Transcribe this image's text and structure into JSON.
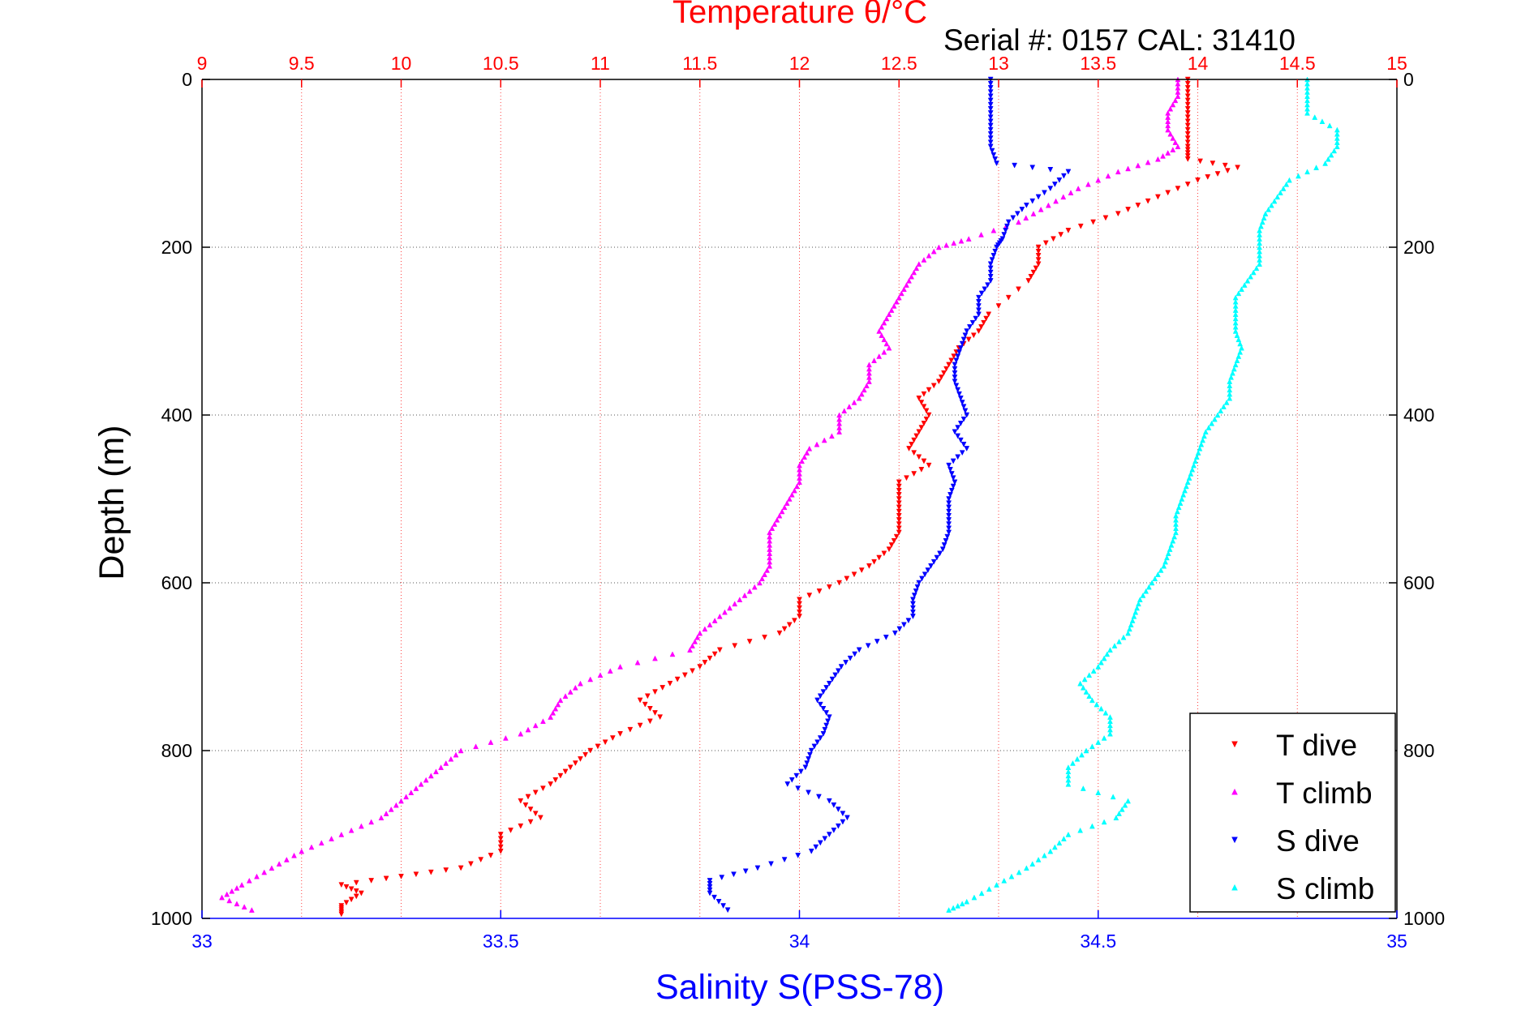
{
  "chart_data": {
    "type": "scatter",
    "title": "Temperature θ/°C",
    "subtitle": "Serial #: 0157  CAL: 31410",
    "xlabel": "Salinity S(PSS-78)",
    "ylabel": "Depth (m)",
    "x_bottom": {
      "label": "Salinity S(PSS-78)",
      "range": [
        33,
        35
      ],
      "ticks": [
        "33",
        "33.5",
        "34",
        "34.5",
        "35"
      ],
      "color": "#0000ff"
    },
    "x_top": {
      "label": "Temperature θ/°C",
      "range": [
        9,
        15
      ],
      "ticks": [
        "9",
        "9.5",
        "10",
        "10.5",
        "11",
        "11.5",
        "12",
        "12.5",
        "13",
        "13.5",
        "14",
        "14.5",
        "15"
      ],
      "color": "#ff0000"
    },
    "y": {
      "label": "Depth (m)",
      "range": [
        0,
        1000
      ],
      "reversed": true,
      "ticks": [
        "0",
        "200",
        "400",
        "600",
        "800",
        "1000"
      ]
    },
    "grid": true,
    "legend_position": "bottom-right",
    "series": [
      {
        "name": "T dive",
        "axis": "temperature",
        "color": "#ff0000",
        "marker": "triangle-down",
        "points": [
          [
            13.95,
            0
          ],
          [
            13.95,
            20
          ],
          [
            13.95,
            40
          ],
          [
            13.95,
            60
          ],
          [
            13.95,
            80
          ],
          [
            13.95,
            95
          ],
          [
            14.2,
            105
          ],
          [
            14.0,
            120
          ],
          [
            13.8,
            140
          ],
          [
            13.6,
            160
          ],
          [
            13.35,
            180
          ],
          [
            13.2,
            200
          ],
          [
            13.2,
            220
          ],
          [
            13.15,
            240
          ],
          [
            12.95,
            280
          ],
          [
            12.9,
            300
          ],
          [
            12.8,
            320
          ],
          [
            12.75,
            340
          ],
          [
            12.7,
            360
          ],
          [
            12.6,
            380
          ],
          [
            12.65,
            400
          ],
          [
            12.6,
            420
          ],
          [
            12.55,
            440
          ],
          [
            12.65,
            460
          ],
          [
            12.5,
            480
          ],
          [
            12.5,
            500
          ],
          [
            12.5,
            520
          ],
          [
            12.5,
            540
          ],
          [
            12.45,
            560
          ],
          [
            12.35,
            580
          ],
          [
            12.2,
            600
          ],
          [
            12.0,
            620
          ],
          [
            12.0,
            640
          ],
          [
            11.9,
            660
          ],
          [
            11.6,
            680
          ],
          [
            11.5,
            700
          ],
          [
            11.35,
            720
          ],
          [
            11.2,
            740
          ],
          [
            11.3,
            760
          ],
          [
            11.1,
            780
          ],
          [
            10.95,
            800
          ],
          [
            10.85,
            820
          ],
          [
            10.75,
            840
          ],
          [
            10.6,
            860
          ],
          [
            10.7,
            880
          ],
          [
            10.5,
            900
          ],
          [
            10.5,
            920
          ],
          [
            10.3,
            940
          ],
          [
            10.0,
            950
          ],
          [
            9.7,
            960
          ],
          [
            9.8,
            970
          ],
          [
            9.7,
            985
          ],
          [
            9.7,
            995
          ]
        ]
      },
      {
        "name": "T climb",
        "axis": "temperature",
        "color": "#ff00ff",
        "marker": "triangle-up",
        "points": [
          [
            13.9,
            0
          ],
          [
            13.9,
            20
          ],
          [
            13.85,
            40
          ],
          [
            13.85,
            60
          ],
          [
            13.9,
            80
          ],
          [
            13.8,
            95
          ],
          [
            13.6,
            110
          ],
          [
            13.4,
            130
          ],
          [
            13.25,
            150
          ],
          [
            13.1,
            170
          ],
          [
            12.85,
            190
          ],
          [
            12.7,
            200
          ],
          [
            12.6,
            220
          ],
          [
            12.55,
            240
          ],
          [
            12.5,
            260
          ],
          [
            12.45,
            280
          ],
          [
            12.4,
            300
          ],
          [
            12.45,
            320
          ],
          [
            12.35,
            340
          ],
          [
            12.35,
            360
          ],
          [
            12.3,
            380
          ],
          [
            12.2,
            400
          ],
          [
            12.2,
            420
          ],
          [
            12.05,
            440
          ],
          [
            12.0,
            460
          ],
          [
            12.0,
            480
          ],
          [
            11.95,
            500
          ],
          [
            11.9,
            520
          ],
          [
            11.85,
            540
          ],
          [
            11.85,
            560
          ],
          [
            11.85,
            580
          ],
          [
            11.8,
            600
          ],
          [
            11.7,
            620
          ],
          [
            11.6,
            640
          ],
          [
            11.5,
            660
          ],
          [
            11.45,
            680
          ],
          [
            11.1,
            700
          ],
          [
            10.9,
            720
          ],
          [
            10.8,
            740
          ],
          [
            10.75,
            760
          ],
          [
            10.6,
            780
          ],
          [
            10.3,
            800
          ],
          [
            10.2,
            820
          ],
          [
            10.1,
            840
          ],
          [
            10.0,
            860
          ],
          [
            9.9,
            880
          ],
          [
            9.7,
            900
          ],
          [
            9.5,
            920
          ],
          [
            9.35,
            940
          ],
          [
            9.2,
            960
          ],
          [
            9.1,
            975
          ],
          [
            9.25,
            990
          ]
        ]
      },
      {
        "name": "S dive",
        "axis": "salinity",
        "color": "#0000ff",
        "marker": "triangle-down",
        "points": [
          [
            34.32,
            0
          ],
          [
            34.32,
            20
          ],
          [
            34.32,
            40
          ],
          [
            34.32,
            60
          ],
          [
            34.32,
            80
          ],
          [
            34.33,
            100
          ],
          [
            34.45,
            110
          ],
          [
            34.42,
            130
          ],
          [
            34.38,
            150
          ],
          [
            34.35,
            170
          ],
          [
            34.34,
            190
          ],
          [
            34.33,
            200
          ],
          [
            34.32,
            220
          ],
          [
            34.32,
            240
          ],
          [
            34.3,
            260
          ],
          [
            34.3,
            280
          ],
          [
            34.28,
            300
          ],
          [
            34.27,
            320
          ],
          [
            34.26,
            340
          ],
          [
            34.26,
            360
          ],
          [
            34.27,
            380
          ],
          [
            34.28,
            400
          ],
          [
            34.26,
            420
          ],
          [
            34.28,
            440
          ],
          [
            34.25,
            460
          ],
          [
            34.26,
            480
          ],
          [
            34.25,
            500
          ],
          [
            34.25,
            520
          ],
          [
            34.25,
            540
          ],
          [
            34.24,
            560
          ],
          [
            34.22,
            580
          ],
          [
            34.2,
            600
          ],
          [
            34.19,
            620
          ],
          [
            34.19,
            640
          ],
          [
            34.16,
            660
          ],
          [
            34.1,
            680
          ],
          [
            34.07,
            700
          ],
          [
            34.05,
            720
          ],
          [
            34.03,
            740
          ],
          [
            34.05,
            760
          ],
          [
            34.04,
            780
          ],
          [
            34.02,
            800
          ],
          [
            34.01,
            820
          ],
          [
            33.98,
            840
          ],
          [
            34.05,
            860
          ],
          [
            34.08,
            880
          ],
          [
            34.05,
            900
          ],
          [
            34.02,
            920
          ],
          [
            33.93,
            940
          ],
          [
            33.85,
            955
          ],
          [
            33.85,
            970
          ],
          [
            33.88,
            990
          ]
        ]
      },
      {
        "name": "S climb",
        "axis": "salinity",
        "color": "#00ffff",
        "marker": "triangle-up",
        "points": [
          [
            34.85,
            0
          ],
          [
            34.85,
            20
          ],
          [
            34.85,
            40
          ],
          [
            34.9,
            60
          ],
          [
            34.9,
            80
          ],
          [
            34.88,
            100
          ],
          [
            34.82,
            120
          ],
          [
            34.8,
            140
          ],
          [
            34.78,
            160
          ],
          [
            34.77,
            180
          ],
          [
            34.77,
            200
          ],
          [
            34.77,
            220
          ],
          [
            34.75,
            240
          ],
          [
            34.73,
            260
          ],
          [
            34.73,
            280
          ],
          [
            34.73,
            300
          ],
          [
            34.74,
            320
          ],
          [
            34.73,
            340
          ],
          [
            34.72,
            360
          ],
          [
            34.72,
            380
          ],
          [
            34.7,
            400
          ],
          [
            34.68,
            420
          ],
          [
            34.67,
            440
          ],
          [
            34.66,
            460
          ],
          [
            34.65,
            480
          ],
          [
            34.64,
            500
          ],
          [
            34.63,
            520
          ],
          [
            34.63,
            540
          ],
          [
            34.62,
            560
          ],
          [
            34.61,
            580
          ],
          [
            34.59,
            600
          ],
          [
            34.57,
            620
          ],
          [
            34.56,
            640
          ],
          [
            34.55,
            660
          ],
          [
            34.52,
            680
          ],
          [
            34.5,
            700
          ],
          [
            34.47,
            720
          ],
          [
            34.49,
            740
          ],
          [
            34.52,
            760
          ],
          [
            34.52,
            780
          ],
          [
            34.48,
            800
          ],
          [
            34.45,
            820
          ],
          [
            34.45,
            840
          ],
          [
            34.55,
            860
          ],
          [
            34.53,
            880
          ],
          [
            34.45,
            900
          ],
          [
            34.42,
            920
          ],
          [
            34.38,
            940
          ],
          [
            34.33,
            960
          ],
          [
            34.28,
            980
          ],
          [
            34.25,
            990
          ]
        ]
      }
    ]
  }
}
